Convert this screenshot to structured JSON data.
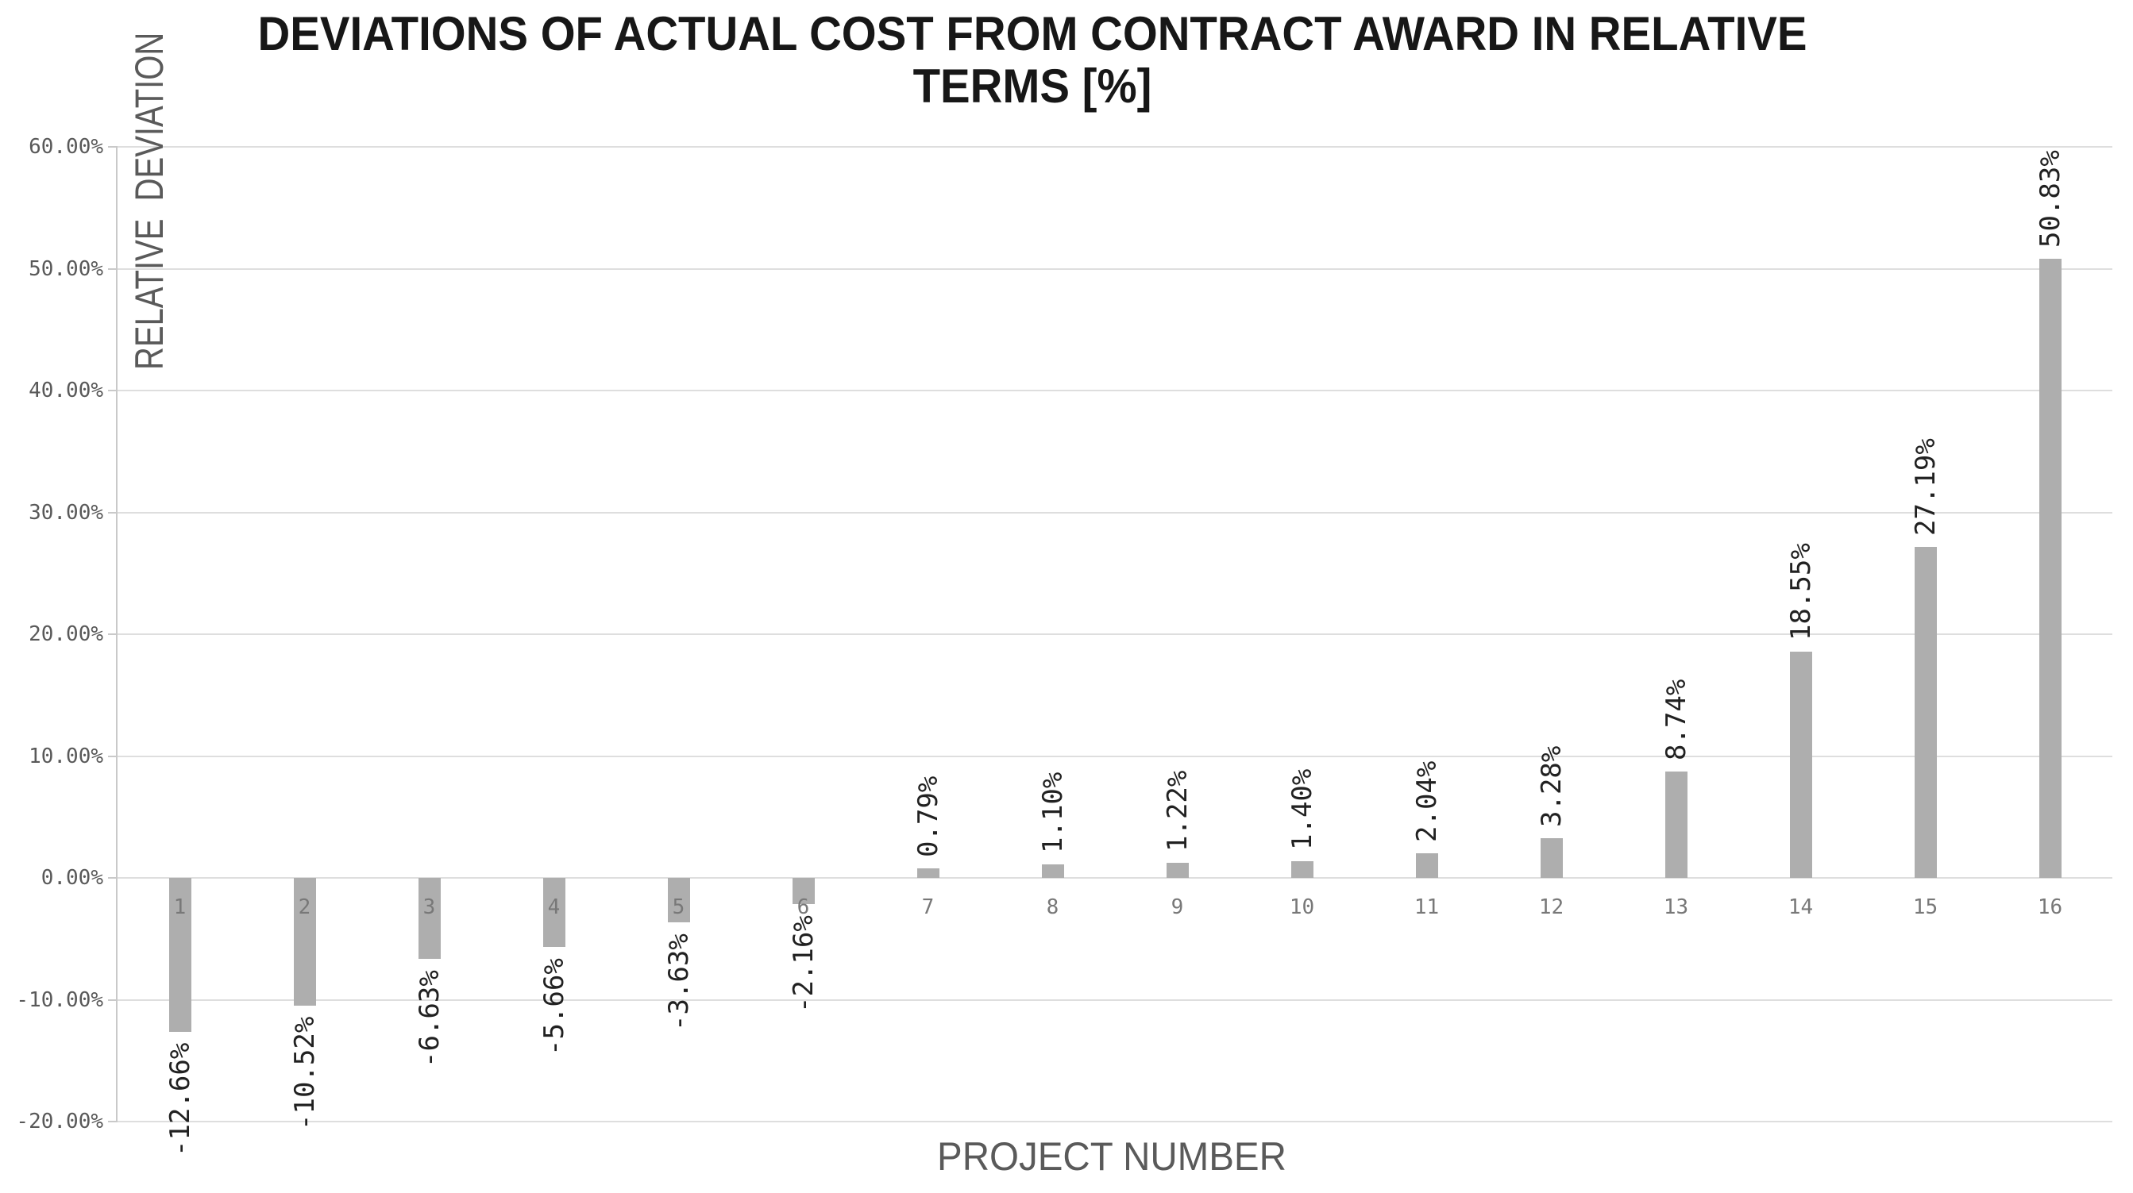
{
  "chart": {
    "title_line1": "DEVIATIONS OF ACTUAL COST FROM CONTRACT AWARD IN RELATIVE",
    "title_line2": "TERMS [%]"
  },
  "y_axis": {
    "title": "RELATIVE  DEVIATION",
    "tick_labels": [
      "60.00%",
      "50.00%",
      "40.00%",
      "30.00%",
      "20.00%",
      "10.00%",
      "0.00%",
      "-10.00%",
      "-20.00%"
    ]
  },
  "x_axis": {
    "title": "PROJECT NUMBER"
  },
  "chart_data": {
    "type": "bar",
    "title": "DEVIATIONS OF ACTUAL COST FROM CONTRACT AWARD IN RELATIVE TERMS [%]",
    "categories": [
      "1",
      "2",
      "3",
      "4",
      "5",
      "6",
      "7",
      "8",
      "9",
      "10",
      "11",
      "12",
      "13",
      "14",
      "15",
      "16"
    ],
    "values": [
      -12.66,
      -10.52,
      -6.63,
      -5.66,
      -3.63,
      -2.16,
      0.79,
      1.1,
      1.22,
      1.4,
      2.04,
      3.28,
      8.74,
      18.55,
      27.19,
      50.83
    ],
    "data_labels": [
      "-12.66%",
      "-10.52%",
      "-6.63%",
      "-5.66%",
      "-3.63%",
      "-2.16%",
      "0.79%",
      "1.10%",
      "1.22%",
      "1.40%",
      "2.04%",
      "3.28%",
      "8.74%",
      "18.55%",
      "27.19%",
      "50.83%"
    ],
    "xlabel": "PROJECT NUMBER",
    "ylabel": "RELATIVE DEVIATION",
    "ylim": [
      -20,
      60
    ],
    "ytick_step": 10,
    "grid": true,
    "legend": "none",
    "bar_color": "#aeaeae"
  },
  "colors": {
    "bar": "#aeaeae",
    "gridline": "#dedede",
    "axis_line": "#c9c9c9",
    "tick_label": "#595959",
    "category_label": "#787878",
    "data_label": "#212121",
    "axis_title": "#5a5a5a",
    "title": "#171717",
    "background": "#ffffff"
  }
}
